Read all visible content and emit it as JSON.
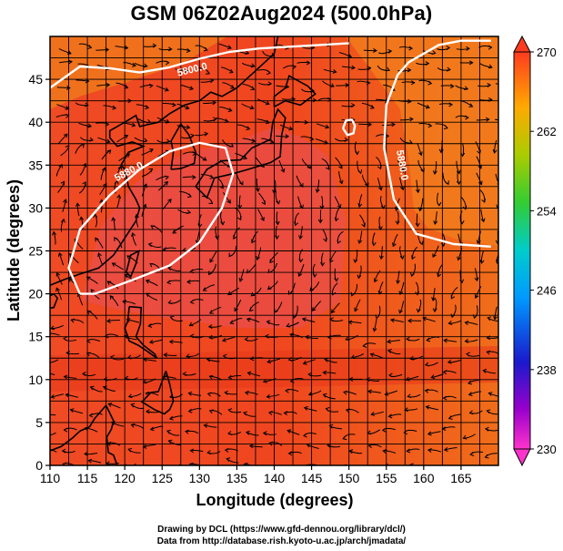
{
  "title": "GSM 06Z02Aug2024 (500.0hPa)",
  "axes": {
    "xlabel": "Longitude (degrees)",
    "ylabel": "Latitude  (degrees)",
    "x_ticks": [
      "110",
      "115",
      "120",
      "125",
      "130",
      "135",
      "140",
      "145",
      "150",
      "155",
      "160",
      "165"
    ],
    "y_ticks": [
      "0",
      "5",
      "10",
      "15",
      "20",
      "25",
      "30",
      "35",
      "40",
      "45"
    ]
  },
  "colorbar": {
    "labels": [
      "270",
      "262",
      "254",
      "246",
      "238",
      "230"
    ]
  },
  "contour_labels": [
    "5800.0",
    "5880.0",
    "5880.0"
  ],
  "credits": {
    "line1": "Drawing by DCL (https://www.gfd-dennou.org/library/dcl/)",
    "line2": "Data from http://database.rish.kyoto-u.ac.jp/arch/jmadata/"
  },
  "chart_data": {
    "type": "heatmap",
    "title": "GSM 06Z02Aug2024 (500.0hPa)",
    "xlabel": "Longitude (degrees)",
    "ylabel": "Latitude  (degrees)",
    "xlim": [
      110,
      170
    ],
    "ylim": [
      0,
      50
    ],
    "color_range": [
      230,
      270
    ],
    "colorbar_ticks": [
      270,
      262,
      254,
      246,
      238,
      230
    ],
    "grid": true,
    "contours": [
      {
        "level": "5800.0",
        "lon": [
          110,
          114,
          118,
          122,
          126,
          130,
          134,
          138,
          142,
          146,
          150
        ],
        "lat": [
          44,
          46.5,
          46.3,
          45.8,
          46.4,
          47.4,
          48.2,
          48.6,
          48.8,
          49,
          49.2
        ]
      },
      {
        "level": "5880.0",
        "lon": [
          114,
          112.5,
          114,
          118,
          122,
          126,
          130,
          133.5,
          134.5,
          133,
          130,
          126,
          121,
          116,
          114
        ],
        "lat": [
          20,
          23,
          27.5,
          31.5,
          34.5,
          36.6,
          37.6,
          37,
          34,
          30,
          26,
          23.3,
          21.6,
          20,
          20
        ]
      },
      {
        "level": "5880.0",
        "lon": [
          169,
          164,
          159,
          156,
          154.7,
          155,
          156.5,
          158,
          162,
          165,
          169
        ],
        "lat": [
          25.5,
          25.8,
          27,
          31,
          37,
          42,
          45.5,
          47,
          49,
          49.5,
          49.5
        ]
      },
      {
        "level": "",
        "lon": [
          149.2,
          149.6,
          150.4,
          150.8,
          150.6,
          149.8,
          149.2
        ],
        "lat": [
          39.3,
          40.2,
          40.3,
          39.6,
          38.7,
          38.5,
          39.3
        ]
      }
    ]
  }
}
